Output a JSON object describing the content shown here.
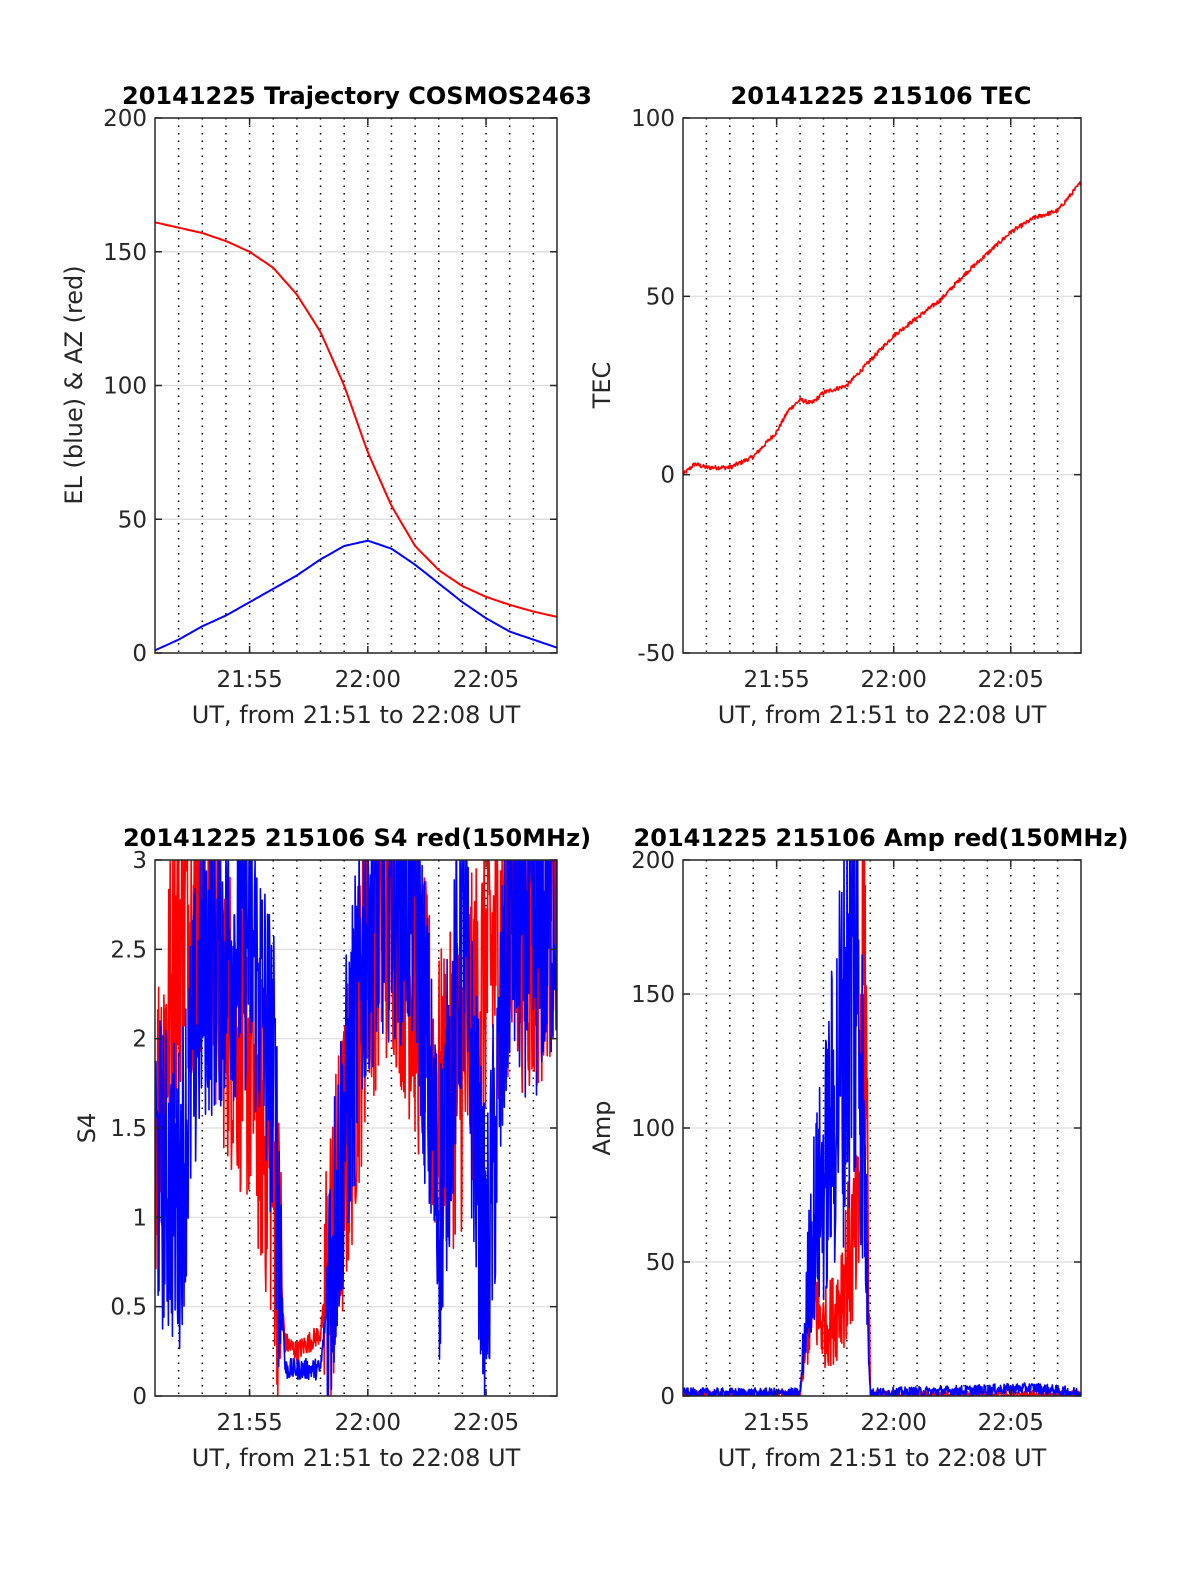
{
  "figure": {
    "colors": {
      "red": "#ff0000",
      "blue": "#0000ff",
      "grid": "#d9d9d9",
      "axis": "#262626"
    }
  },
  "chart_data": [
    {
      "type": "line",
      "title": "20141225 Trajectory COSMOS2463",
      "xlabel": "UT, from 21:51 to 22:08 UT",
      "ylabel": "EL (blue) & AZ (red)",
      "xlim": [
        "21:51",
        "22:08"
      ],
      "ylim": [
        0,
        200
      ],
      "xticks": [
        "21:55",
        "22:00",
        "22:05"
      ],
      "yticks": [
        "0",
        "50",
        "100",
        "150",
        "200"
      ],
      "grid": true,
      "series": [
        {
          "color": "#ff0000",
          "x": [
            "21:51",
            "21:52",
            "21:53",
            "21:54",
            "21:55",
            "21:56",
            "21:57",
            "21:58",
            "21:59",
            "22:00",
            "22:01",
            "22:02",
            "22:03",
            "22:04",
            "22:05",
            "22:06",
            "22:07",
            "22:08"
          ],
          "values": [
            161,
            159,
            157,
            154,
            150,
            144,
            134,
            120,
            100,
            75,
            55,
            40,
            31,
            25,
            21,
            18,
            15.5,
            13.5
          ]
        },
        {
          "color": "#0000ff",
          "x": [
            "21:51",
            "21:52",
            "21:53",
            "21:54",
            "21:55",
            "21:56",
            "21:57",
            "21:58",
            "21:59",
            "22:00",
            "22:01",
            "22:02",
            "22:03",
            "22:04",
            "22:05",
            "22:06",
            "22:07",
            "22:08"
          ],
          "values": [
            1,
            5,
            10,
            14,
            19,
            24,
            29,
            35,
            40,
            42,
            39,
            33,
            26,
            19,
            13,
            8,
            5,
            2
          ]
        }
      ]
    },
    {
      "type": "line",
      "title": "20141225 215106 TEC",
      "xlabel": "UT, from 21:51 to 22:08 UT",
      "ylabel": "TEC",
      "xlim": [
        "21:51",
        "22:08"
      ],
      "ylim": [
        -50,
        100
      ],
      "xticks": [
        "21:55",
        "22:00",
        "22:05"
      ],
      "yticks": [
        "-50",
        "0",
        "50",
        "100"
      ],
      "grid": true,
      "series": [
        {
          "color": "#ff0000",
          "x": [
            "21:51",
            "21:51:30",
            "21:52",
            "21:53",
            "21:54",
            "21:55",
            "21:55:30",
            "21:56",
            "21:56:30",
            "21:57",
            "21:58",
            "21:59",
            "22:00",
            "22:01",
            "22:02",
            "22:03",
            "22:04",
            "22:05",
            "22:06",
            "22:07",
            "22:08"
          ],
          "values": [
            0,
            3,
            2,
            2,
            5,
            12,
            18,
            21,
            20,
            23,
            25,
            32,
            39,
            44,
            49,
            56,
            62,
            68,
            72,
            74,
            82
          ]
        }
      ]
    },
    {
      "type": "line",
      "title": "20141225 215106 S4 red(150MHz)",
      "xlabel": "UT, from 21:51 to 22:08 UT",
      "ylabel": "S4",
      "xlim": [
        "21:51",
        "22:08"
      ],
      "ylim": [
        0,
        3
      ],
      "xticks": [
        "21:55",
        "22:00",
        "22:05"
      ],
      "yticks": [
        "0",
        "0.5",
        "1",
        "1.5",
        "2",
        "2.5",
        "3"
      ],
      "grid": true,
      "series": [
        {
          "color": "#ff0000",
          "x": [
            "21:51",
            "21:52",
            "21:53",
            "21:54",
            "21:55",
            "21:56",
            "21:56:30",
            "21:57",
            "21:58",
            "21:59",
            "22:00",
            "22:01",
            "22:02",
            "22:03",
            "22:04",
            "22:05",
            "22:06",
            "22:07",
            "22:08"
          ],
          "values": [
            1.5,
            2.6,
            2.8,
            2.2,
            1.9,
            1.2,
            0.3,
            0.25,
            0.35,
            1.3,
            2.5,
            2.8,
            2.3,
            1.6,
            1.8,
            2.4,
            2.7,
            2.5,
            2.9
          ]
        },
        {
          "color": "#0000ff",
          "x": [
            "21:51",
            "21:52",
            "21:53",
            "21:54",
            "21:55",
            "21:56",
            "21:56:30",
            "21:57",
            "21:58",
            "21:59",
            "22:00",
            "22:01",
            "22:02",
            "22:03",
            "22:04",
            "22:05",
            "22:06",
            "22:07",
            "22:08"
          ],
          "values": [
            1.3,
            1.1,
            2.4,
            2.5,
            2.6,
            1.8,
            0.15,
            0.15,
            0.15,
            1.5,
            2.7,
            2.9,
            2.8,
            1.0,
            2.6,
            0.6,
            2.7,
            2.5,
            2.8
          ]
        }
      ]
    },
    {
      "type": "line",
      "title": "20141225 215106 Amp red(150MHz)",
      "xlabel": "UT, from 21:51 to 22:08 UT",
      "ylabel": "Amp",
      "xlim": [
        "21:51",
        "22:08"
      ],
      "ylim": [
        0,
        200
      ],
      "xticks": [
        "21:55",
        "22:00",
        "22:05"
      ],
      "yticks": [
        "0",
        "50",
        "100",
        "150",
        "200"
      ],
      "grid": true,
      "series": [
        {
          "color": "#ff0000",
          "x": [
            "21:51",
            "21:56",
            "21:56:30",
            "21:57",
            "21:57:30",
            "21:58",
            "21:58:30",
            "21:58:45",
            "21:59",
            "22:08"
          ],
          "values": [
            0,
            0,
            40,
            25,
            30,
            50,
            60,
            180,
            0,
            0
          ]
        },
        {
          "color": "#0000ff",
          "x": [
            "21:51",
            "21:56",
            "21:56:30",
            "21:57",
            "21:57:30",
            "21:58",
            "21:58:30",
            "21:59",
            "22:03",
            "22:06",
            "22:08"
          ],
          "values": [
            1,
            1,
            60,
            80,
            110,
            150,
            165,
            1,
            2,
            3,
            1
          ]
        }
      ]
    }
  ]
}
